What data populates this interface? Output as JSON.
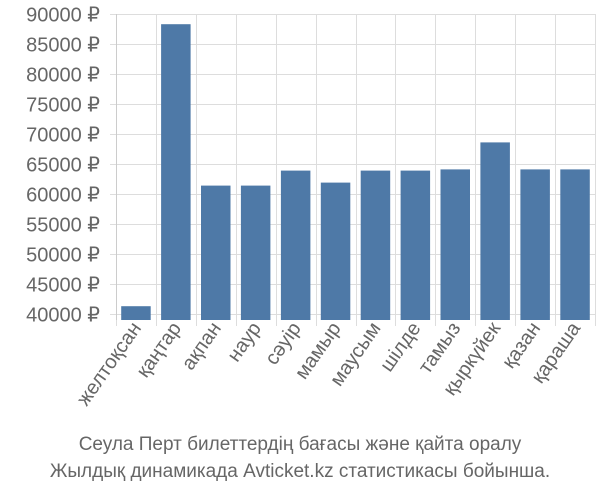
{
  "chart_data": {
    "type": "bar",
    "categories": [
      "желтоқсан",
      "қаңтар",
      "ақпан",
      "наур",
      "сәуір",
      "мамыр",
      "маусым",
      "шілде",
      "тамыз",
      "қыркүйек",
      "қазан",
      "қараша"
    ],
    "values": [
      41300,
      88300,
      61400,
      61400,
      63900,
      61900,
      63900,
      63900,
      64100,
      68600,
      64100,
      64100
    ],
    "ylim": [
      39000,
      90000
    ],
    "yticks": [
      40000,
      45000,
      50000,
      55000,
      60000,
      65000,
      70000,
      75000,
      80000,
      85000,
      90000
    ],
    "currency_suffix": " ₽",
    "bar_color": "#4e79a7",
    "grid": true,
    "title": "",
    "xlabel": "",
    "ylabel": ""
  },
  "caption": {
    "line1": "Сеула Перт билеттердің бағасы және қайта оралу",
    "line2": "Жылдық динамикада Avticket.kz статистикасы бойынша."
  }
}
